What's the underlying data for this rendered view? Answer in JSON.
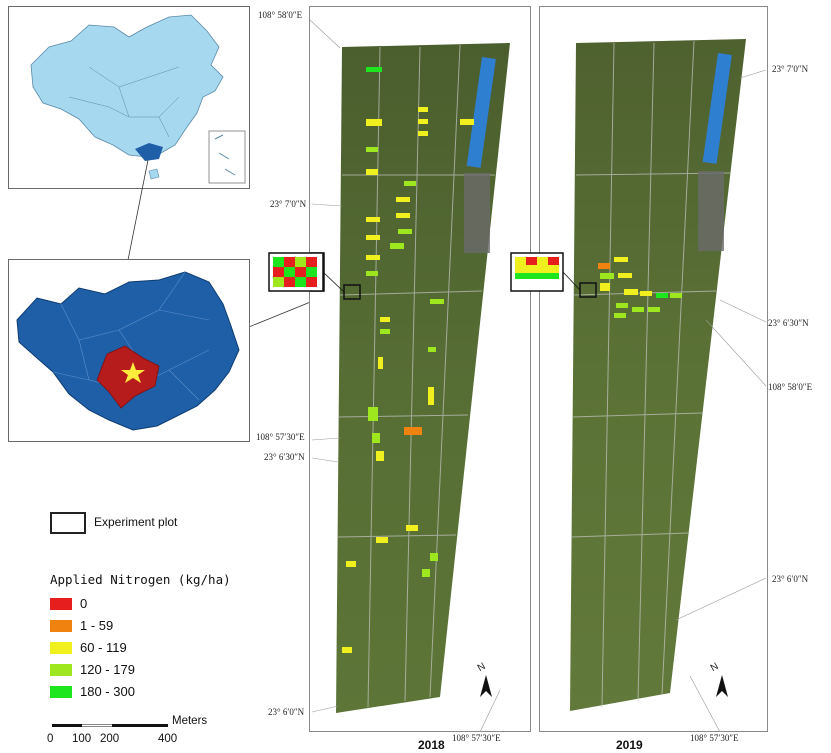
{
  "legend": {
    "title": "Applied Nitrogen (kg/ha)",
    "classes": [
      {
        "label": "0",
        "color": "#e61e1e"
      },
      {
        "label": "1 - 59",
        "color": "#f0820f"
      },
      {
        "label": "60 - 119",
        "color": "#f0f01e"
      },
      {
        "label": "120 - 179",
        "color": "#9ee61e"
      },
      {
        "label": "180 - 300",
        "color": "#1ee61e"
      }
    ],
    "experiment_plot_label": "Experiment plot"
  },
  "scale_bar": {
    "unit": "Meters",
    "ticks": [
      "0",
      "100",
      "200",
      "400"
    ]
  },
  "maps": [
    {
      "year": "2018",
      "coords": {
        "top_lon": "108° 58′0″E",
        "lat_7_0": "23° 7′0″N",
        "lon_57_30_left": "108° 57′30″E",
        "lat_6_30": "23° 6′30″N",
        "lat_6_0": "23° 6′0″N",
        "bottom_lon": "108° 57′30″E"
      }
    },
    {
      "year": "2019",
      "coords": {
        "lat_7_0": "23° 7′0″N",
        "lat_6_30": "23° 6′30″N",
        "right_lon": "108° 58′0″E",
        "lat_6_0": "23° 6′0″N",
        "bottom_lon": "108° 57′30″E"
      }
    }
  ],
  "north_label": "N",
  "colors": {
    "china_fill": "#a6d9f0",
    "guangxi_fill": "#1f5fa8",
    "study_area_fill": "#b71c1c",
    "star": "#ffeb3b",
    "imagery": "#4f6b33"
  }
}
